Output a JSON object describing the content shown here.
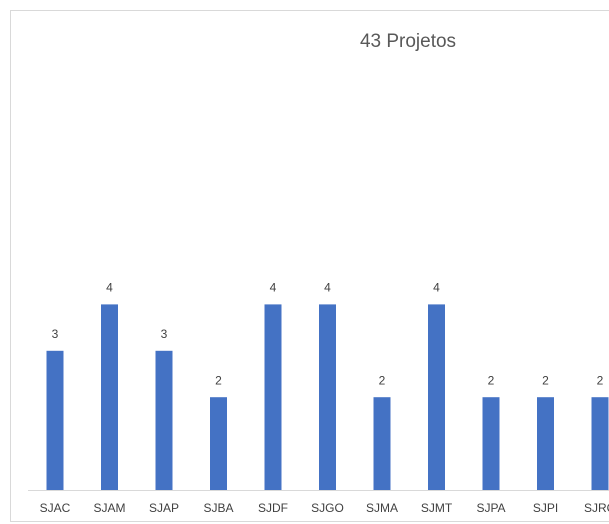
{
  "chart_data": {
    "type": "bar",
    "title": "43 Projetos",
    "categories": [
      "SJAC",
      "SJAM",
      "SJAP",
      "SJBA",
      "SJDF",
      "SJGO",
      "SJMA",
      "SJMT",
      "SJPA",
      "SJPI",
      "SJRO"
    ],
    "values": [
      3,
      4,
      3,
      2,
      4,
      4,
      2,
      4,
      2,
      2,
      2
    ],
    "color": "#4472c4"
  }
}
